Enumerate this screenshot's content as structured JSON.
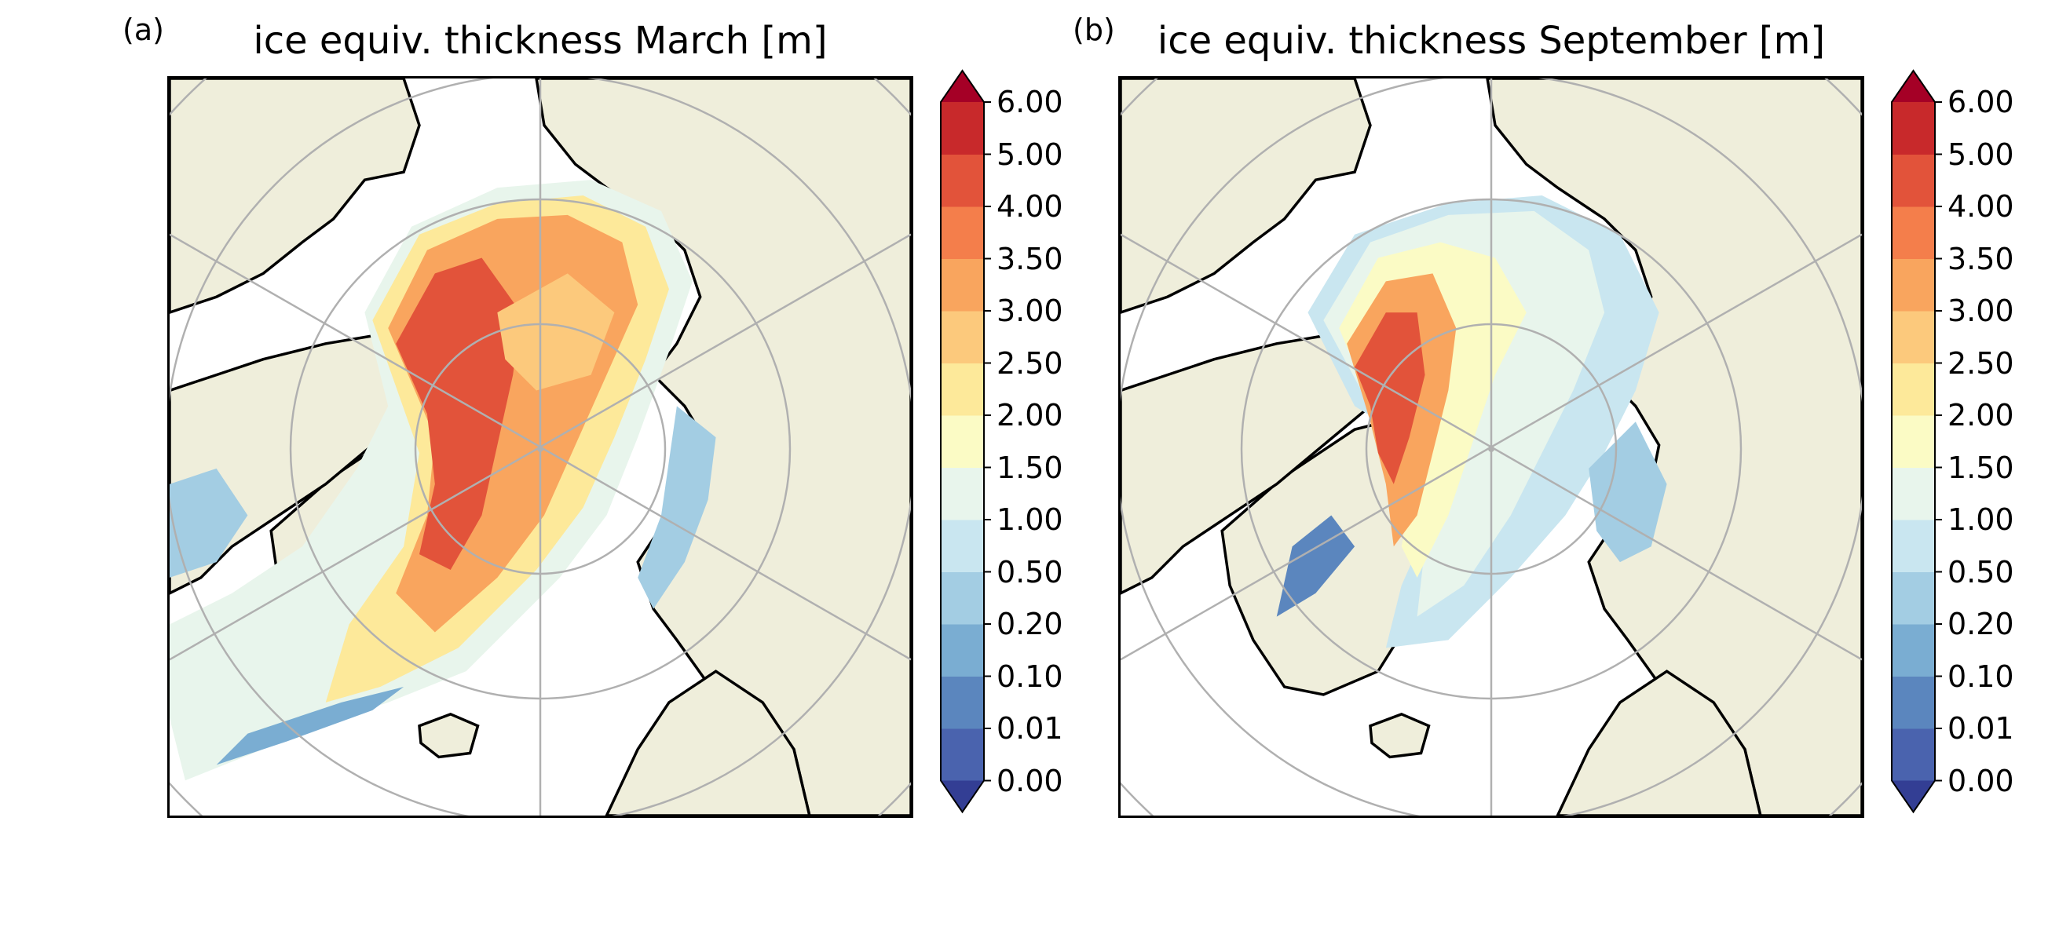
{
  "panels": [
    {
      "letter": "(a)",
      "title": "ice equiv. thickness March [m]",
      "month": "March"
    },
    {
      "letter": "(b)",
      "title": "ice equiv. thickness September [m]",
      "month": "September"
    }
  ],
  "colorbar": {
    "tick_labels": [
      "0.00",
      "0.01",
      "0.10",
      "0.20",
      "0.50",
      "1.00",
      "1.50",
      "2.00",
      "2.50",
      "3.00",
      "3.50",
      "4.00",
      "5.00",
      "6.00"
    ],
    "bins": [
      {
        "range": [
          "0.00",
          "0.01"
        ],
        "color": "#4a63ae"
      },
      {
        "range": [
          "0.01",
          "0.10"
        ],
        "color": "#5b86be"
      },
      {
        "range": [
          "0.10",
          "0.20"
        ],
        "color": "#7aadd2"
      },
      {
        "range": [
          "0.20",
          "0.50"
        ],
        "color": "#a3cde3"
      },
      {
        "range": [
          "0.50",
          "1.00"
        ],
        "color": "#c9e6f0"
      },
      {
        "range": [
          "1.00",
          "1.50"
        ],
        "color": "#e8f5ec"
      },
      {
        "range": [
          "1.50",
          "2.00"
        ],
        "color": "#fbfbc5"
      },
      {
        "range": [
          "2.00",
          "2.50"
        ],
        "color": "#fde99a"
      },
      {
        "range": [
          "2.50",
          "3.00"
        ],
        "color": "#fcc97c"
      },
      {
        "range": [
          "3.00",
          "3.50"
        ],
        "color": "#f9a55e"
      },
      {
        "range": [
          "3.50",
          "4.00"
        ],
        "color": "#f47e4b"
      },
      {
        "range": [
          "4.00",
          "5.00"
        ],
        "color": "#e2533a"
      },
      {
        "range": [
          "5.00",
          "6.00"
        ],
        "color": "#c8292b"
      }
    ],
    "extend_under_color": "#333e94",
    "extend_over_color": "#a50026"
  },
  "map_colors": {
    "land": "#efeedb",
    "ocean": "#ffffff",
    "coast": "#000000",
    "graticule": "#b0b0b0"
  }
}
